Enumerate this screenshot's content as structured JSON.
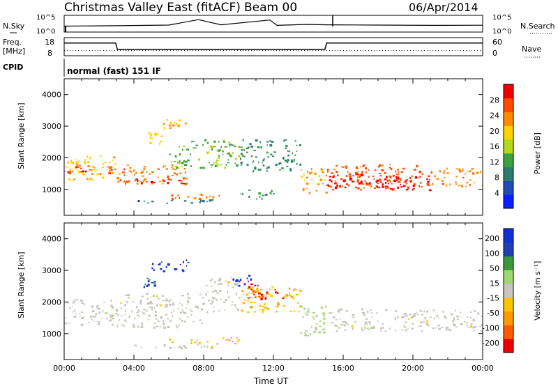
{
  "header": {
    "title": "Christmas Valley East (fitACF)",
    "beam": "Beam 00",
    "date": "06/Apr/2014"
  },
  "colors": {
    "power_scale": [
      "#0a1eff",
      "#1e4bb4",
      "#2d7a70",
      "#3aa040",
      "#b4d81a",
      "#ffd200",
      "#ff8a00",
      "#ff4a00",
      "#ee0000"
    ],
    "velocity_scale": [
      "#ee0000",
      "#ff5a00",
      "#ff9900",
      "#ffc400",
      "#c8c6bf",
      "#9ed870",
      "#3a9a3a",
      "#2040b0",
      "#1030d0"
    ],
    "ground_scatter": "#c8c6bf"
  },
  "panels": {
    "nsky": {
      "left_label": "N.Sky",
      "left_ticks": [
        "10^5",
        "10^0"
      ],
      "right_label": "N.Search",
      "right_ticks": [
        "10^5",
        "10^0"
      ]
    },
    "freq": {
      "left_label_1": "Freq.",
      "left_label_2": "[MHz]",
      "left_ticks": [
        "18",
        "8"
      ],
      "right_label": "Nave",
      "right_ticks": [
        "60",
        "0"
      ]
    },
    "cpid": {
      "label": "CPID",
      "text": "normal (fast) 151 IF"
    },
    "power": {
      "cbar_label": "Power [dB]",
      "cbar_ticks": [
        "4",
        "8",
        "12",
        "16",
        "20",
        "24",
        "28"
      ]
    },
    "velocity": {
      "cbar_label": "Velocity [m s⁻¹]",
      "cbar_ticks": [
        "200",
        "100",
        "50",
        "15",
        "-15",
        "-50",
        "-100",
        "-200"
      ]
    }
  },
  "chart_data": [
    {
      "type": "line",
      "title": "",
      "xlabel": "",
      "ylabel": "N.Sky",
      "y2label": "N.Search",
      "xlim": [
        "00:00",
        "24:00"
      ],
      "series": [
        {
          "name": "N.Sky",
          "x": [
            0,
            3,
            6,
            7.7,
            9,
            11.8,
            12.2,
            14,
            15,
            18,
            21,
            24
          ],
          "y": [
            60,
            80,
            120,
            5000,
            150,
            4000,
            100,
            200,
            150,
            120,
            100,
            110
          ]
        }
      ]
    },
    {
      "type": "line",
      "title": "",
      "xlabel": "",
      "ylabel": "Freq. [MHz]",
      "y2label": "Nave",
      "ylim": [
        8,
        18
      ],
      "series": [
        {
          "name": "Freq.",
          "x": [
            0,
            2.95,
            3.05,
            14.95,
            15.05,
            24
          ],
          "y": [
            15,
            15,
            11.5,
            11.5,
            15,
            15
          ]
        },
        {
          "name": "Nave",
          "x": [
            0,
            3,
            15,
            24
          ],
          "y": [
            17,
            17,
            17,
            17
          ]
        }
      ]
    },
    {
      "type": "heatmap",
      "title": "",
      "xlabel": "Time UT",
      "ylabel": "Slant Range [km]",
      "zlabel": "Power [dB]",
      "x_ticks": [
        "00:00",
        "04:00",
        "08:00",
        "12:00",
        "16:00",
        "20:00",
        "00:00"
      ],
      "y_ticks": [
        1000,
        2000,
        3000,
        4000
      ],
      "ylim": [
        180,
        4500
      ],
      "zlim": [
        0,
        32
      ],
      "regions": [
        {
          "x0": 0,
          "x1": 2.9,
          "y0": 1300,
          "y1": 2100,
          "value": 20
        },
        {
          "x0": 0,
          "x1": 2.9,
          "y0": 1500,
          "y1": 1800,
          "value": 28
        },
        {
          "x0": 3,
          "x1": 7,
          "y0": 1200,
          "y1": 1800,
          "value": 24
        },
        {
          "x0": 3,
          "x1": 7,
          "y0": 1200,
          "y1": 1350,
          "value": 30
        },
        {
          "x0": 6,
          "x1": 10,
          "y0": 1700,
          "y1": 2600,
          "value": 14
        },
        {
          "x0": 5.5,
          "x1": 7,
          "y0": 2900,
          "y1": 3300,
          "value": 22
        },
        {
          "x0": 4.8,
          "x1": 5.6,
          "y0": 2450,
          "y1": 2800,
          "value": 20
        },
        {
          "x0": 10,
          "x1": 13.5,
          "y0": 1600,
          "y1": 2600,
          "value": 10
        },
        {
          "x0": 13.5,
          "x1": 15,
          "y0": 900,
          "y1": 1700,
          "value": 22
        },
        {
          "x0": 15,
          "x1": 21,
          "y0": 1000,
          "y1": 1800,
          "value": 26
        },
        {
          "x0": 15,
          "x1": 21,
          "y0": 1000,
          "y1": 1500,
          "value": 30
        },
        {
          "x0": 21,
          "x1": 24,
          "y0": 1100,
          "y1": 1700,
          "value": 24
        },
        {
          "x0": 4,
          "x1": 8.5,
          "y0": 570,
          "y1": 700,
          "value": 8
        },
        {
          "x0": 6,
          "x1": 9,
          "y0": 700,
          "y1": 900,
          "value": 24
        },
        {
          "x0": 10,
          "x1": 12,
          "y0": 700,
          "y1": 1000,
          "value": 10
        }
      ]
    },
    {
      "type": "heatmap",
      "title": "",
      "xlabel": "Time UT",
      "ylabel": "Slant Range [km]",
      "zlabel": "Velocity [m s⁻¹]",
      "x_ticks": [
        "00:00",
        "04:00",
        "08:00",
        "12:00",
        "16:00",
        "20:00",
        "00:00"
      ],
      "y_ticks": [
        1000,
        2000,
        3000,
        4000
      ],
      "ylim": [
        180,
        4500
      ],
      "zlim": [
        -250,
        250
      ],
      "regions": [
        {
          "x0": 0,
          "x1": 3,
          "y0": 1300,
          "y1": 2100,
          "value": 0
        },
        {
          "x0": 3,
          "x1": 8,
          "y0": 1200,
          "y1": 2300,
          "value": 0
        },
        {
          "x0": 8,
          "x1": 10,
          "y0": 1700,
          "y1": 2800,
          "value": 0
        },
        {
          "x0": 10,
          "x1": 13.5,
          "y0": 1700,
          "y1": 2500,
          "value": -60
        },
        {
          "x0": 10.5,
          "x1": 12.5,
          "y0": 2100,
          "y1": 2600,
          "value": -200
        },
        {
          "x0": 9.5,
          "x1": 11,
          "y0": 2500,
          "y1": 2900,
          "value": 200
        },
        {
          "x0": 13.5,
          "x1": 15,
          "y0": 900,
          "y1": 1900,
          "value": 40
        },
        {
          "x0": 15,
          "x1": 24,
          "y0": 1100,
          "y1": 1800,
          "value": 0
        },
        {
          "x0": 5,
          "x1": 7.2,
          "y0": 3000,
          "y1": 3350,
          "value": 200
        },
        {
          "x0": 4.5,
          "x1": 5.2,
          "y0": 2500,
          "y1": 2800,
          "value": 150
        },
        {
          "x0": 4,
          "x1": 8.5,
          "y0": 560,
          "y1": 700,
          "value": 0
        },
        {
          "x0": 6,
          "x1": 10,
          "y0": 700,
          "y1": 900,
          "value": -50
        }
      ]
    }
  ],
  "axis": {
    "xlabel": "Time UT",
    "ylabel": "Slant Range [km]"
  }
}
